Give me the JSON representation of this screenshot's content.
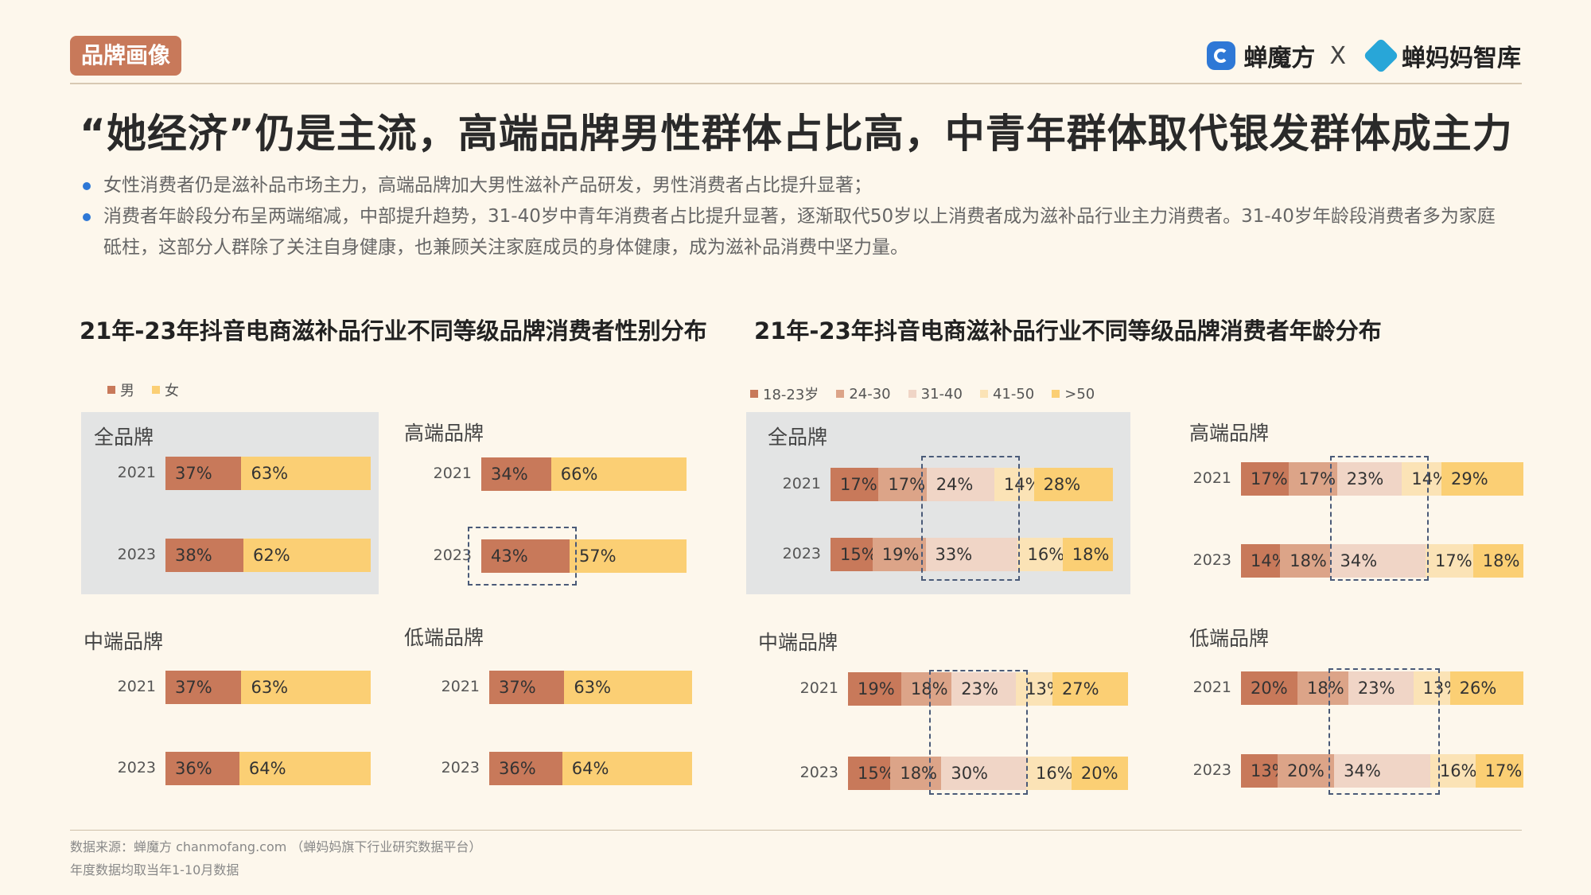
{
  "header": {
    "tag": "品牌画像",
    "brand1": "蝉魔方",
    "brand_sep": "X",
    "brand2": "蝉妈妈智库",
    "title": "“她经济”仍是主流，高端品牌男性群体占比高，中青年群体取代银发群体成主力"
  },
  "bullets": [
    "女性消费者仍是滋补品市场主力，高端品牌加大男性滋补产品研发，男性消费者占比提升显著；",
    "消费者年龄段分布呈两端缩减，中部提升趋势，31-40岁中青年消费者占比提升显著，逐渐取代50岁以上消费者成为滋补品行业主力消费者。31-40岁年龄段消费者多为家庭砥柱，这部分人群除了关注自身健康，也兼顾关注家庭成员的身体健康，成为滋补品消费中坚力量。"
  ],
  "footer": {
    "line1": "数据来源：蝉魔方 chanmofang.com （蝉妈妈旗下行业研究数据平台）",
    "line2": "年度数据均取当年1-10月数据"
  },
  "colors": {
    "accent": "#c8795a",
    "male": "#c8795a",
    "female": "#fbcf74",
    "age": [
      "#c8795a",
      "#dca488",
      "#f0d5c6",
      "#fbe3b6",
      "#fbcf74"
    ],
    "highlight_bg": "#e3e4e4"
  },
  "chart_data": [
    {
      "type": "bar",
      "stacked": true,
      "orientation": "horizontal",
      "title": "21年-23年抖音电商滋补品行业不同等级品牌消费者性别分布",
      "legend": [
        "男",
        "女"
      ],
      "groups": [
        {
          "name": "全品牌",
          "highlight": true,
          "categories": [
            "2021",
            "2023"
          ],
          "series": [
            {
              "name": "男",
              "values": [
                37,
                38
              ]
            },
            {
              "name": "女",
              "values": [
                63,
                62
              ]
            }
          ]
        },
        {
          "name": "高端品牌",
          "categories": [
            "2021",
            "2023"
          ],
          "series": [
            {
              "name": "男",
              "values": [
                34,
                43
              ]
            },
            {
              "name": "女",
              "values": [
                66,
                57
              ]
            }
          ]
        },
        {
          "name": "中端品牌",
          "categories": [
            "2021",
            "2023"
          ],
          "series": [
            {
              "name": "男",
              "values": [
                37,
                36
              ]
            },
            {
              "name": "女",
              "values": [
                63,
                64
              ]
            }
          ]
        },
        {
          "name": "低端品牌",
          "categories": [
            "2021",
            "2023"
          ],
          "series": [
            {
              "name": "男",
              "values": [
                37,
                36
              ]
            },
            {
              "name": "女",
              "values": [
                63,
                64
              ]
            }
          ]
        }
      ],
      "unit": "%"
    },
    {
      "type": "bar",
      "stacked": true,
      "orientation": "horizontal",
      "title": "21年-23年抖音电商滋补品行业不同等级品牌消费者年龄分布",
      "legend": [
        "18-23岁",
        "24-30",
        "31-40",
        "41-50",
        ">50"
      ],
      "groups": [
        {
          "name": "全品牌",
          "highlight": true,
          "categories": [
            "2021",
            "2023"
          ],
          "series": [
            {
              "name": "18-23岁",
              "values": [
                17,
                15
              ]
            },
            {
              "name": "24-30",
              "values": [
                17,
                19
              ]
            },
            {
              "name": "31-40",
              "values": [
                24,
                33
              ]
            },
            {
              "name": "41-50",
              "values": [
                14,
                16
              ]
            },
            {
              "name": ">50",
              "values": [
                28,
                18
              ]
            }
          ]
        },
        {
          "name": "高端品牌",
          "categories": [
            "2021",
            "2023"
          ],
          "series": [
            {
              "name": "18-23岁",
              "values": [
                17,
                14
              ]
            },
            {
              "name": "24-30",
              "values": [
                17,
                18
              ]
            },
            {
              "name": "31-40",
              "values": [
                23,
                34
              ]
            },
            {
              "name": "41-50",
              "values": [
                14,
                17
              ]
            },
            {
              "name": ">50",
              "values": [
                29,
                18
              ]
            }
          ]
        },
        {
          "name": "中端品牌",
          "categories": [
            "2021",
            "2023"
          ],
          "series": [
            {
              "name": "18-23岁",
              "values": [
                19,
                15
              ]
            },
            {
              "name": "24-30",
              "values": [
                18,
                18
              ]
            },
            {
              "name": "31-40",
              "values": [
                23,
                30
              ]
            },
            {
              "name": "41-50",
              "values": [
                13,
                16
              ]
            },
            {
              "name": ">50",
              "values": [
                27,
                20
              ]
            }
          ]
        },
        {
          "name": "低端品牌",
          "categories": [
            "2021",
            "2023"
          ],
          "series": [
            {
              "name": "18-23岁",
              "values": [
                20,
                13
              ]
            },
            {
              "name": "24-30",
              "values": [
                18,
                20
              ]
            },
            {
              "name": "31-40",
              "values": [
                23,
                34
              ]
            },
            {
              "name": "41-50",
              "values": [
                13,
                16
              ]
            },
            {
              "name": ">50",
              "values": [
                26,
                17
              ]
            }
          ]
        }
      ],
      "unit": "%"
    }
  ]
}
